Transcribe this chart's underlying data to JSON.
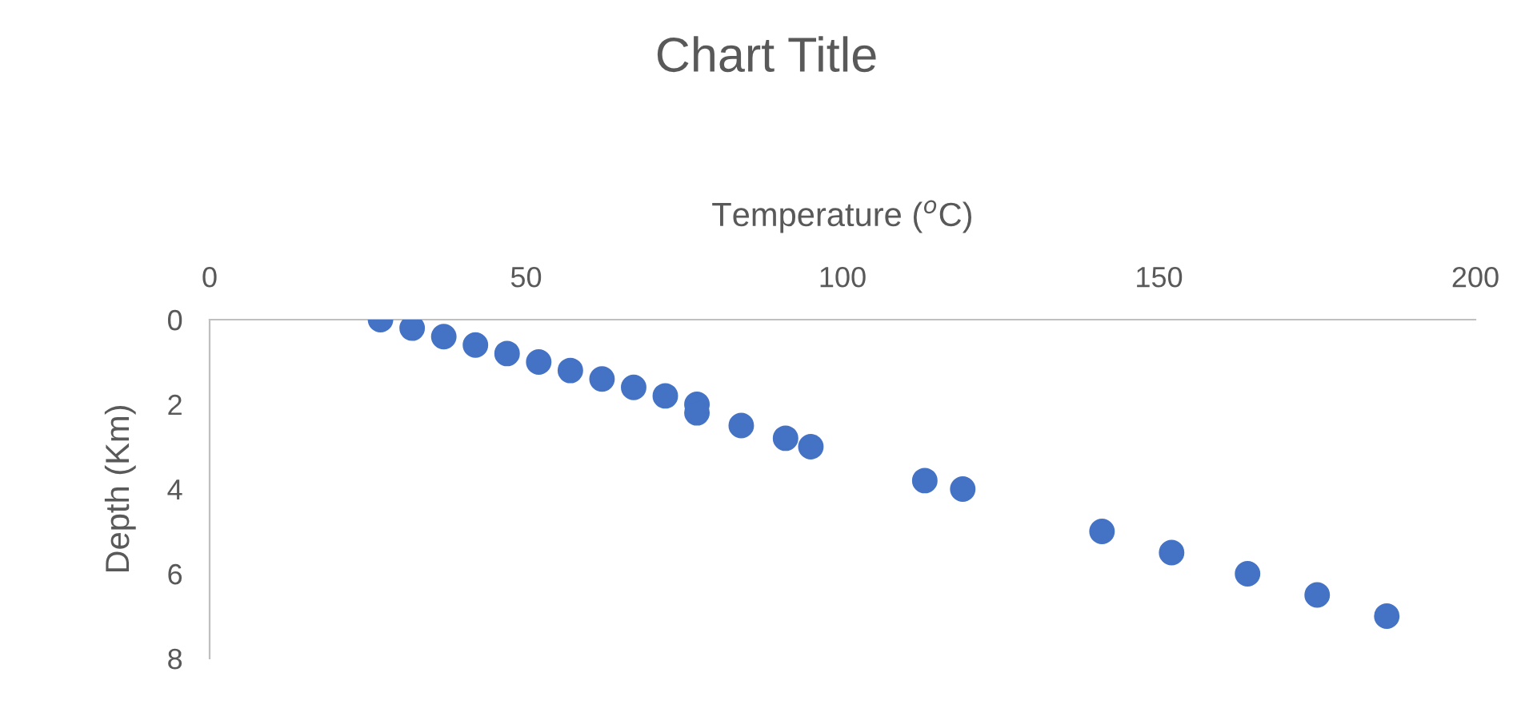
{
  "chart_data": {
    "type": "scatter",
    "title": "Chart Title",
    "xlabel": "Temperature ($^{o}$C)",
    "ylabel": "Depth (Km)",
    "x": [
      27,
      32,
      37,
      42,
      47,
      52,
      57,
      62,
      67,
      72,
      77,
      77,
      84,
      91,
      95,
      113,
      119,
      141,
      152,
      164,
      175,
      186
    ],
    "series": [
      {
        "color": "#4472c4",
        "values": [
          0,
          0.2,
          0.4,
          0.6,
          0.8,
          1.0,
          1.2,
          1.4,
          1.6,
          1.8,
          2.0,
          2.2,
          2.5,
          2.8,
          3.0,
          3.8,
          4.0,
          5.0,
          5.5,
          6.0,
          6.5,
          7.0
        ]
      }
    ],
    "xlim": [
      0,
      200
    ],
    "xticks": [
      0,
      50,
      100,
      150,
      200
    ],
    "ylim": [
      8,
      0
    ],
    "yticks": [
      0,
      2,
      4,
      6,
      8
    ],
    "marker": "circle",
    "grid": false,
    "legend": false
  }
}
